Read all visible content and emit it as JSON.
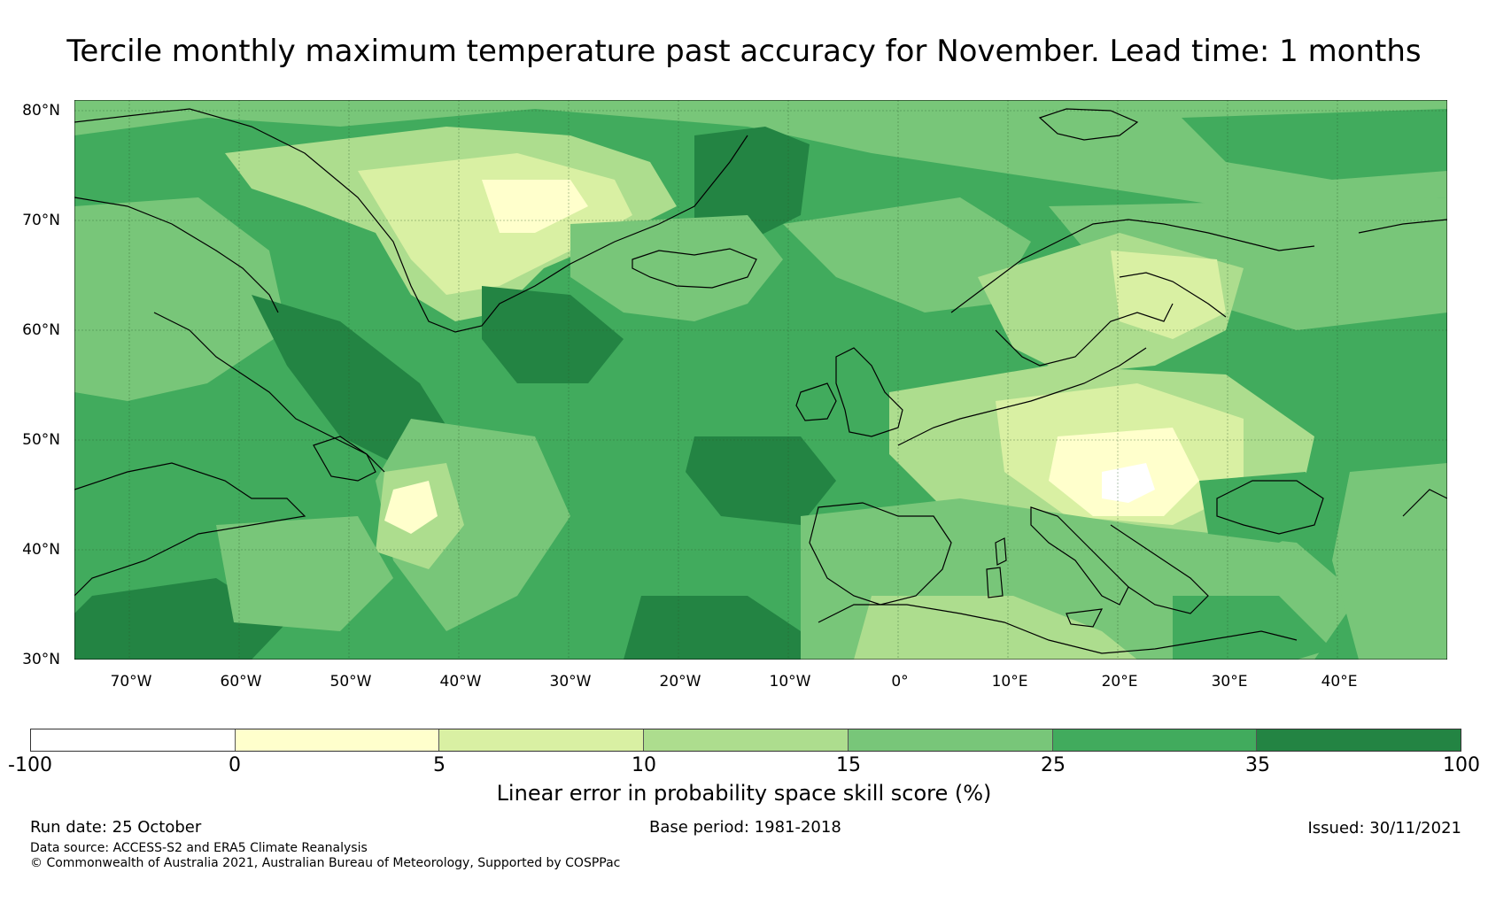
{
  "title": "Tercile monthly maximum temperature past accuracy for November. Lead time: 1 months",
  "map": {
    "extent": {
      "lon_min": -75,
      "lon_max": 50,
      "lat_min": 30,
      "lat_max": 81
    },
    "lat_ticks": [
      "80°N",
      "70°N",
      "60°N",
      "50°N",
      "40°N",
      "30°N"
    ],
    "lon_ticks": [
      "70°W",
      "60°W",
      "50°W",
      "40°W",
      "30°W",
      "20°W",
      "10°W",
      "0°",
      "10°E",
      "20°E",
      "30°E",
      "40°E"
    ],
    "background_color": "#41ab5d"
  },
  "colorbar": {
    "label": "Linear error in probability space skill score (%)",
    "tick_labels": [
      "-100",
      "0",
      "5",
      "10",
      "15",
      "25",
      "35",
      "100"
    ],
    "bins": [
      {
        "range": "-100 to 0",
        "color": "#ffffff"
      },
      {
        "range": "0 to 5",
        "color": "#ffffcc"
      },
      {
        "range": "5 to 10",
        "color": "#d9f0a3"
      },
      {
        "range": "10 to 15",
        "color": "#addd8e"
      },
      {
        "range": "15 to 25",
        "color": "#78c679"
      },
      {
        "range": "25 to 35",
        "color": "#41ab5d"
      },
      {
        "range": "35 to 100",
        "color": "#238443"
      }
    ]
  },
  "footer": {
    "run_date": "Run date: 25 October",
    "base_period": "Base period: 1981-2018",
    "issued": "Issued: 30/11/2021",
    "data_source": "Data source: ACCESS-S2 and ERA5 Climate Reanalysis",
    "copyright": "© Commonwealth of Australia 2021, Australian Bureau of Meteorology, Supported by COSPPac"
  }
}
